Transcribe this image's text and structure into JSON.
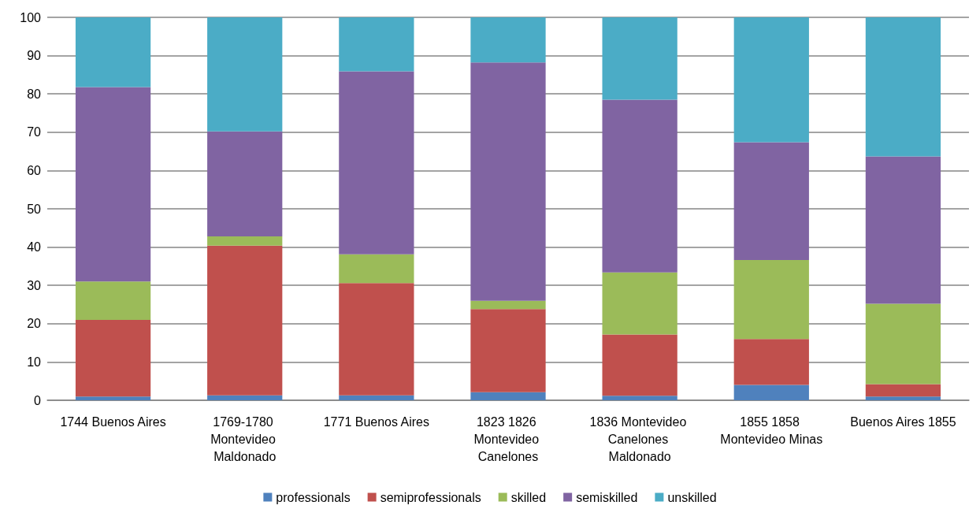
{
  "chart_data": {
    "type": "bar",
    "stacked": true,
    "categories": [
      "1744 Buenos Aires",
      "1769-1780 Montevideo Maldonado",
      "1771 Buenos Aires",
      "1823 1826 Montevideo Canelones",
      "1836 Montevideo Canelones Maldonado",
      "1855 1858 Montevideo Minas",
      "Buenos Aires 1855"
    ],
    "series": [
      {
        "name": "professionals",
        "color": "#4f81bd",
        "values": [
          1,
          1.3,
          1.3,
          2.1,
          1.2,
          4,
          1
        ]
      },
      {
        "name": "semiprofessionals",
        "color": "#c0504d",
        "values": [
          20,
          39.1,
          29.3,
          21.7,
          16,
          12,
          3.2
        ]
      },
      {
        "name": "skilled",
        "color": "#9bbb59",
        "values": [
          10,
          2.4,
          7.5,
          2.2,
          16.2,
          20.6,
          21
        ]
      },
      {
        "name": "semiskilled",
        "color": "#8064a2",
        "values": [
          50.8,
          27.4,
          47.8,
          62.2,
          45.1,
          30.8,
          38.5
        ]
      },
      {
        "name": "unskilled",
        "color": "#4bacc6",
        "values": [
          18.2,
          29.8,
          14.1,
          11.8,
          21.5,
          32.6,
          36.3
        ]
      }
    ],
    "ylim": [
      0,
      100
    ],
    "yticks": [
      0,
      10,
      20,
      30,
      40,
      50,
      60,
      70,
      80,
      90,
      100
    ],
    "grid": "y",
    "legend": "bottom"
  }
}
